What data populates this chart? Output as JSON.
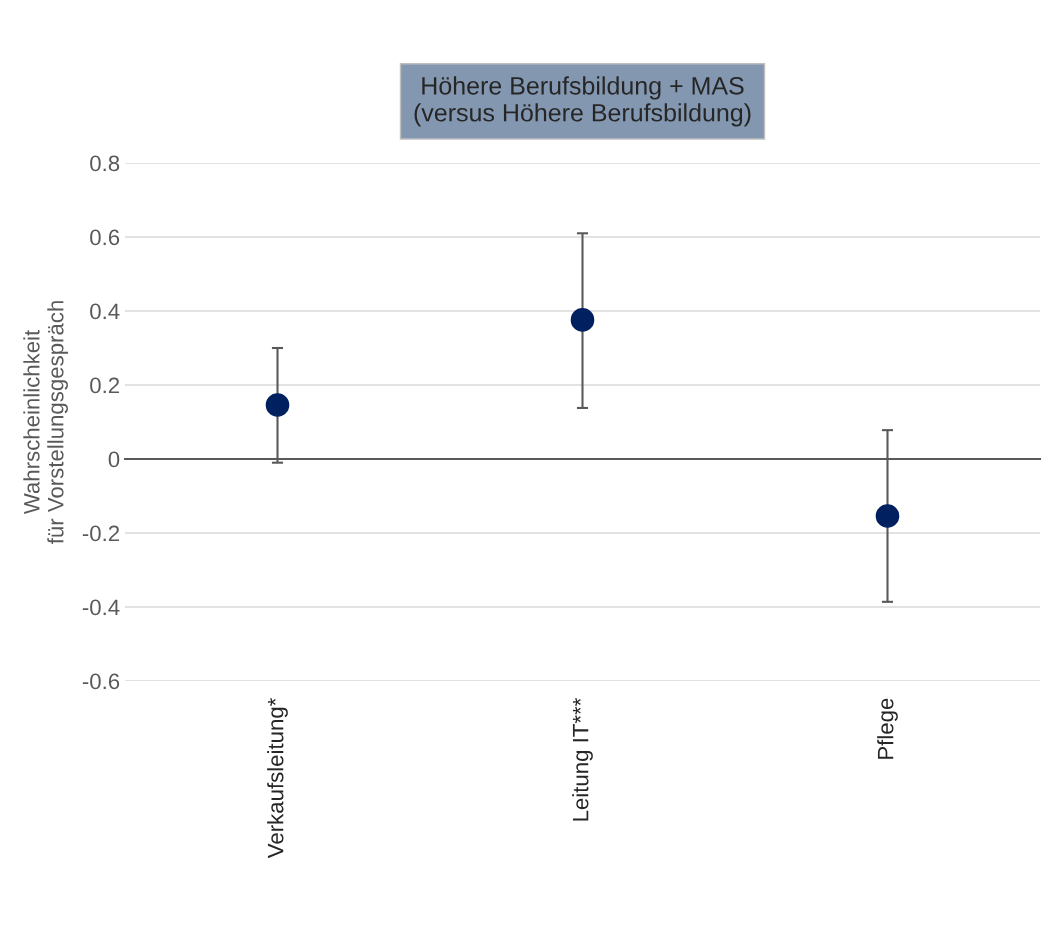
{
  "chart_data": {
    "type": "scatter",
    "title": "Höhere Berufsbildung + MAS\n(versus Höhere Berufsbildung)",
    "ylabel": "Wahrscheinlichkeit\nfür Vorstellungsgespräch",
    "categories": [
      "Verkaufsleitung*",
      "Leitung IT***",
      "Pflege"
    ],
    "series": [
      {
        "color": "#002060",
        "values": [
          0.146,
          0.376,
          -0.154
        ],
        "errors": [
          [
            -0.01,
            0.3
          ],
          [
            0.138,
            0.61
          ],
          [
            -0.386,
            0.078
          ]
        ]
      }
    ],
    "ylim": [
      -0.6,
      0.8
    ],
    "yticks": [
      {
        "value": -0.6,
        "label": "-0.6"
      },
      {
        "value": -0.4,
        "label": "-0.4"
      },
      {
        "value": -0.2,
        "label": "-0.2"
      },
      0,
      {
        "value": 0.2,
        "label": "0.2"
      },
      {
        "value": 0.4,
        "label": "0.4"
      },
      {
        "value": 0.6,
        "label": "0.6"
      },
      {
        "value": 0.8,
        "label": "0.8"
      }
    ],
    "grid": "y",
    "marker": "circle"
  }
}
